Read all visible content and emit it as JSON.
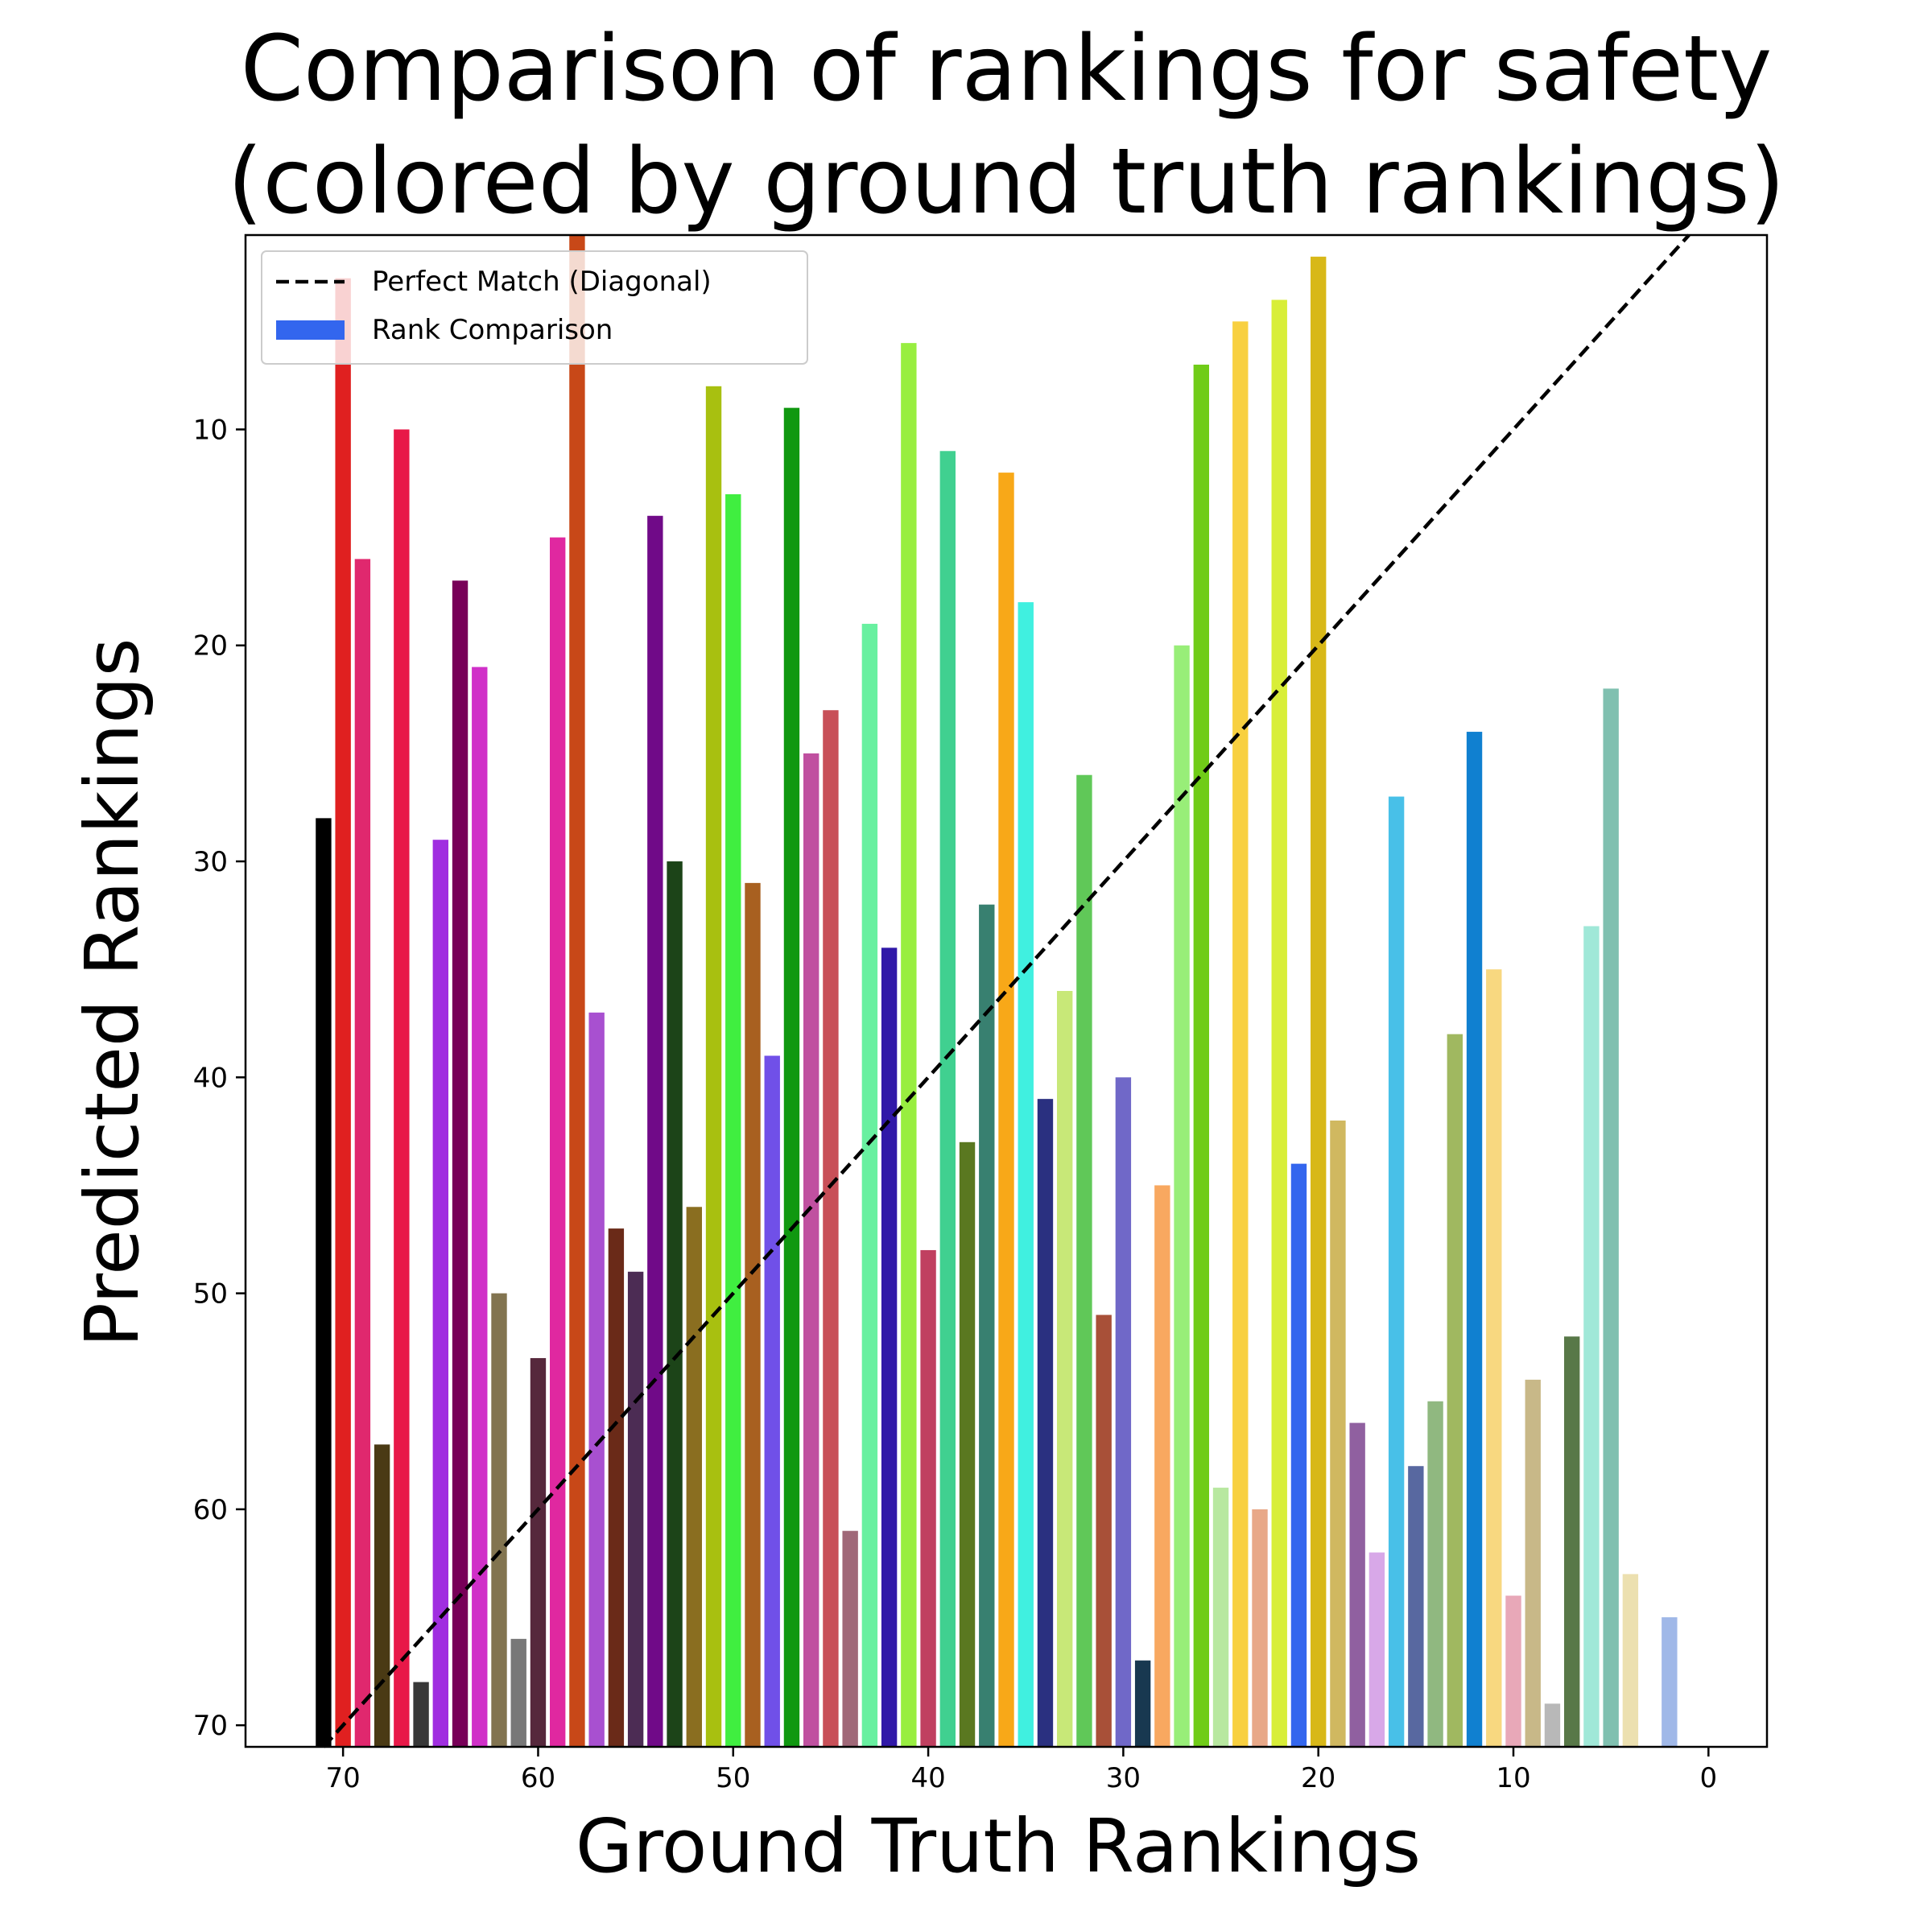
{
  "chart_data": {
    "type": "bar",
    "title": [
      "Comparison of rankings for safety",
      "(colored by ground truth rankings)"
    ],
    "xlabel": "Ground Truth Rankings",
    "ylabel": "Predicted Rankings",
    "xlim": [
      75,
      -3
    ],
    "ylim": [
      71,
      1
    ],
    "x_ticks": [
      70,
      60,
      50,
      40,
      30,
      20,
      10,
      0
    ],
    "y_ticks": [
      10,
      20,
      30,
      40,
      50,
      60,
      70
    ],
    "grid": false,
    "legend_position": "top-left",
    "legend": [
      {
        "label": "Perfect Match (Diagonal)",
        "kind": "dashed-line",
        "color": "#000000"
      },
      {
        "label": "Rank Comparison",
        "kind": "patch",
        "color": "#3366ee"
      }
    ],
    "diagonal": {
      "from": [
        71,
        71
      ],
      "to": [
        1,
        1
      ],
      "style": "dashed",
      "color": "#000000"
    },
    "series": [
      {
        "x": [
          71,
          70,
          69,
          68,
          67,
          66,
          65,
          64,
          63,
          62,
          61,
          60,
          59,
          58,
          57,
          56,
          55,
          54,
          53,
          52,
          51,
          50,
          49,
          48,
          47,
          46,
          45,
          44,
          43,
          42,
          41,
          40,
          39,
          38,
          37,
          36,
          35,
          34,
          33,
          32,
          31,
          30,
          29,
          28,
          27,
          26,
          25,
          24,
          23,
          22,
          21,
          20,
          19,
          18,
          17,
          16,
          15,
          14,
          13,
          12,
          11,
          10,
          9,
          8,
          7,
          6,
          5,
          4,
          3,
          2,
          1
        ],
        "values": [
          28,
          3,
          16,
          57,
          10,
          68,
          29,
          17,
          21,
          50,
          66,
          53,
          15,
          1,
          37,
          47,
          49,
          14,
          30,
          46,
          8,
          13,
          31,
          39,
          9,
          25,
          23,
          61,
          19,
          34,
          6,
          48,
          11,
          43,
          32,
          12,
          18,
          41,
          36,
          26,
          51,
          40,
          67,
          45,
          20,
          7,
          59,
          5,
          60,
          4,
          44,
          2,
          42,
          56,
          62,
          27,
          58,
          55,
          38,
          24,
          35,
          64,
          54,
          69,
          52,
          33,
          22,
          63,
          71,
          65,
          71
        ],
        "colors": [
          "#000000",
          "#e02020",
          "#e0286e",
          "#4a3a14",
          "#e81848",
          "#383838",
          "#a02ee0",
          "#780058",
          "#d030c8",
          "#827450",
          "#787878",
          "#56283c",
          "#e028a0",
          "#c84818",
          "#a850d0",
          "#6a2a18",
          "#4c2c54",
          "#700a88",
          "#1c4418",
          "#8a6e20",
          "#a8c010",
          "#40ee40",
          "#a86020",
          "#7050e8",
          "#109810",
          "#c050a0",
          "#c85058",
          "#a06878",
          "#68f0a0",
          "#3018a8",
          "#98ee40",
          "#c04060",
          "#40d090",
          "#5a7820",
          "#388070",
          "#f8a818",
          "#40f0e0",
          "#2a3080",
          "#c8e878",
          "#60c858",
          "#a85038",
          "#7068c8",
          "#183850",
          "#f8a860",
          "#98ee78",
          "#70cc18",
          "#b8e8a0",
          "#f8d040",
          "#e8a888",
          "#d8ee38",
          "#3366ee",
          "#d8b818",
          "#d0b860",
          "#9060a0",
          "#d8a8e8",
          "#48c0e8",
          "#5868a0",
          "#90b880",
          "#a0b860",
          "#1080d0",
          "#f8d880",
          "#e8a8b8",
          "#c8b888",
          "#b8b8b8",
          "#587848",
          "#a0e8d8",
          "#80c0b0",
          "#ece0b0",
          "#ffffff",
          "#a0b8e8",
          "#ffffff"
        ]
      }
    ]
  }
}
